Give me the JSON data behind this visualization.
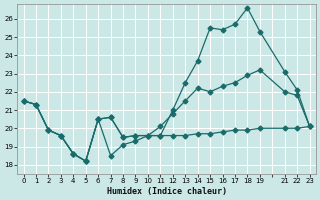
{
  "xlabel": "Humidex (Indice chaleur)",
  "bg_color": "#cce8e6",
  "grid_color": "#b8d8d5",
  "line_color": "#1a6b6b",
  "xlim": [
    -0.5,
    23.5
  ],
  "ylim": [
    17.5,
    26.8
  ],
  "yticks": [
    18,
    19,
    20,
    21,
    22,
    23,
    24,
    25,
    26
  ],
  "line1_x": [
    0,
    1,
    2,
    3,
    4,
    5,
    6,
    7,
    8,
    9,
    10,
    11,
    12,
    13,
    14,
    15,
    16,
    17,
    18,
    19,
    21,
    22,
    23
  ],
  "line1_y": [
    21.5,
    21.3,
    19.9,
    19.6,
    18.6,
    18.2,
    20.5,
    18.5,
    19.1,
    19.3,
    19.6,
    19.6,
    21.0,
    22.5,
    23.7,
    25.5,
    25.4,
    25.7,
    26.6,
    25.3,
    23.1,
    22.1,
    20.1
  ],
  "line2_x": [
    0,
    1,
    2,
    3,
    4,
    5,
    6,
    7,
    8,
    9,
    10,
    11,
    12,
    13,
    14,
    15,
    16,
    17,
    18,
    19,
    21,
    22,
    23
  ],
  "line2_y": [
    21.5,
    21.3,
    19.9,
    19.6,
    18.6,
    18.2,
    20.5,
    20.6,
    19.5,
    19.6,
    19.6,
    20.1,
    20.8,
    21.5,
    22.2,
    22.0,
    22.3,
    22.5,
    22.9,
    23.2,
    22.0,
    21.8,
    20.1
  ],
  "line3_x": [
    0,
    1,
    2,
    3,
    4,
    5,
    6,
    7,
    8,
    9,
    10,
    11,
    12,
    13,
    14,
    15,
    16,
    17,
    18,
    19,
    21,
    22,
    23
  ],
  "line3_y": [
    21.5,
    21.3,
    19.9,
    19.6,
    18.6,
    18.2,
    20.5,
    20.6,
    19.5,
    19.6,
    19.6,
    19.6,
    19.6,
    19.6,
    19.7,
    19.7,
    19.8,
    19.9,
    19.9,
    20.0,
    20.0,
    20.0,
    20.1
  ],
  "xtick_labels": [
    "0",
    "1",
    "2",
    "3",
    "4",
    "5",
    "6",
    "7",
    "8",
    "9",
    "1011",
    "1213",
    "1415",
    "1617",
    "1819",
    " ",
    "2122",
    "23"
  ]
}
